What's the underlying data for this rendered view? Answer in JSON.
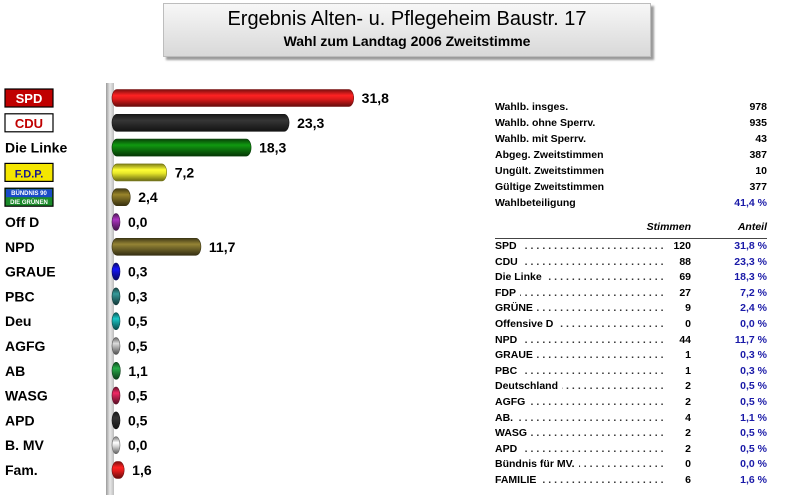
{
  "title": "Ergebnis Alten- u. Pflegeheim Baustr. 17",
  "subtitle": "Wahl zum Landtag 2006 Zweitstimme",
  "chart_data": {
    "type": "bar",
    "orientation": "horizontal",
    "categories": [
      "SPD",
      "CDU",
      "Die Linke",
      "F.D.P.",
      "Bündnis 90 Die Grünen",
      "Off D",
      "NPD",
      "GRAUE",
      "PBC",
      "Deu",
      "AGFG",
      "AB",
      "WASG",
      "APD",
      "B. MV",
      "Fam."
    ],
    "values": [
      31.8,
      23.3,
      18.3,
      7.2,
      2.4,
      0.0,
      11.7,
      0.3,
      0.3,
      0.5,
      0.5,
      1.1,
      0.5,
      0.5,
      0.0,
      1.6
    ],
    "value_labels": [
      "31,8",
      "23,3",
      "18,3",
      "7,2",
      "2,4",
      "0,0",
      "11,7",
      "0,3",
      "0,3",
      "0,5",
      "0,5",
      "1,1",
      "0,5",
      "0,5",
      "0,0",
      "1,6"
    ],
    "colors": [
      "#e01b1b",
      "#2b2b2b",
      "#0d7a0d",
      "#e6e62a",
      "#7a6a22",
      "#8a2a9a",
      "#76692a",
      "#1010c8",
      "#2a7a7a",
      "#14a0a0",
      "#b0b0b0",
      "#1f8a3a",
      "#c02050",
      "#2a2a2a",
      "#d8d8d8",
      "#e01b1b"
    ],
    "logos": {
      "SPD": "SPD",
      "CDU": "CDU",
      "F.D.P.": "F.D.P.",
      "Bündnis 90 Die Grünen": "BÜNDNIS 90 DIE GRÜNEN"
    }
  },
  "stats": [
    {
      "label": "Wahlb. insges.",
      "value": "978"
    },
    {
      "label": "Wahlb. ohne Sperrv.",
      "value": "935"
    },
    {
      "label": "Wahlb. mit Sperrv.",
      "value": "43"
    },
    {
      "label": "Abgeg. Zweitstimmen",
      "value": "387"
    },
    {
      "label": "Ungült. Zweitstimmen",
      "value": "10"
    },
    {
      "label": "Gültige Zweitstimmen",
      "value": "377"
    },
    {
      "label": "Wahlbeteiligung",
      "value": "41,4 %"
    }
  ],
  "table": {
    "col_votes": "Stimmen",
    "col_share": "Anteil",
    "rows": [
      {
        "name": "SPD",
        "votes": "120",
        "share": "31,8 %"
      },
      {
        "name": "CDU",
        "votes": "88",
        "share": "23,3 %"
      },
      {
        "name": "Die Linke",
        "votes": "69",
        "share": "18,3 %"
      },
      {
        "name": "FDP",
        "votes": "27",
        "share": "7,2 %"
      },
      {
        "name": "GRÜNE",
        "votes": "9",
        "share": "2,4 %"
      },
      {
        "name": "Offensive D",
        "votes": "0",
        "share": "0,0 %"
      },
      {
        "name": "NPD",
        "votes": "44",
        "share": "11,7 %"
      },
      {
        "name": "GRAUE",
        "votes": "1",
        "share": "0,3 %"
      },
      {
        "name": "PBC",
        "votes": "1",
        "share": "0,3 %"
      },
      {
        "name": "Deutschland",
        "votes": "2",
        "share": "0,5 %"
      },
      {
        "name": "AGFG",
        "votes": "2",
        "share": "0,5 %"
      },
      {
        "name": "AB.",
        "votes": "4",
        "share": "1,1 %"
      },
      {
        "name": "WASG",
        "votes": "2",
        "share": "0,5 %"
      },
      {
        "name": "APD",
        "votes": "2",
        "share": "0,5 %"
      },
      {
        "name": "Bündnis für MV.",
        "votes": "0",
        "share": "0,0 %"
      },
      {
        "name": "FAMILIE",
        "votes": "6",
        "share": "1,6 %"
      }
    ]
  }
}
